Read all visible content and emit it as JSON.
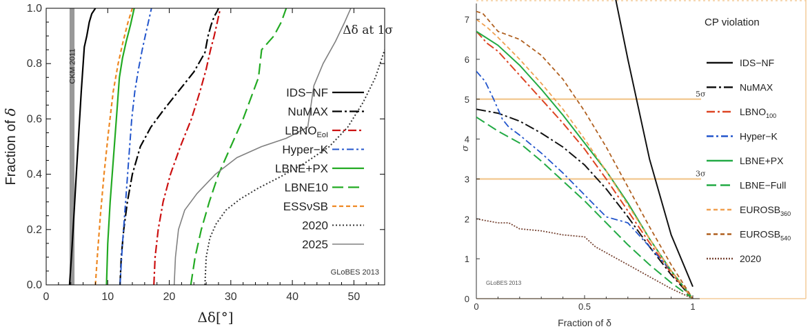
{
  "chart_data": [
    {
      "type": "line",
      "title": "Δδ at 1σ",
      "xlabel": "Δδ[°]",
      "ylabel": "Fraction of δ",
      "xlim": [
        0,
        55
      ],
      "ylim": [
        0,
        1
      ],
      "xticks": [
        "0",
        "10",
        "20",
        "30",
        "40",
        "50"
      ],
      "yticks": [
        "0.0",
        "0.2",
        "0.4",
        "0.6",
        "0.8",
        "1.0"
      ],
      "band": {
        "label": "CKM 2011",
        "x": [
          3.8,
          4.6
        ],
        "color": "#999999"
      },
      "watermark": "GLoBES 2013",
      "legend_position": "right",
      "series": [
        {
          "name": "IDS−NF",
          "legend_html": "IDS−NF",
          "color": "#000000",
          "dash": "",
          "width": 2.2,
          "x": [
            3.8,
            4.1,
            4.5,
            4.9,
            5.3,
            5.7,
            6.2,
            6.6,
            7.0,
            7.4,
            8.0
          ],
          "y": [
            0.0,
            0.1,
            0.25,
            0.4,
            0.55,
            0.7,
            0.86,
            0.9,
            0.95,
            0.98,
            1.0
          ]
        },
        {
          "name": "NuMAX",
          "legend_html": "NuMAX",
          "color": "#000000",
          "dash": "14,4,3,4",
          "width": 2.2,
          "x": [
            12.0,
            12.2,
            12.6,
            13.2,
            14.0,
            15.3,
            17.0,
            19.0,
            21.5,
            24.0,
            25.8,
            26.3,
            26.8,
            27.3,
            27.8,
            28.0
          ],
          "y": [
            0.0,
            0.1,
            0.2,
            0.3,
            0.4,
            0.5,
            0.57,
            0.63,
            0.7,
            0.77,
            0.84,
            0.9,
            0.94,
            0.97,
            0.99,
            1.0
          ]
        },
        {
          "name": "LBNO_EoI",
          "legend_main": "LBNO",
          "legend_sub": "EoI",
          "color": "#cc1111",
          "dash": "12,4,3,4",
          "width": 2.2,
          "x": [
            17.5,
            17.7,
            18.2,
            19.0,
            20.2,
            21.8,
            23.6,
            25.0,
            26.0,
            26.7,
            27.3,
            27.9,
            28.3
          ],
          "y": [
            0.0,
            0.1,
            0.2,
            0.3,
            0.4,
            0.5,
            0.6,
            0.7,
            0.78,
            0.85,
            0.9,
            0.96,
            1.0
          ]
        },
        {
          "name": "Hyper−K",
          "legend_html": "Hyper−K",
          "color": "#2255cc",
          "dash": "10,4,3,4",
          "width": 2.0,
          "x": [
            12.0,
            12.4,
            12.9,
            13.4,
            13.9,
            14.4,
            15.0,
            15.6,
            16.1,
            16.6,
            17.1
          ],
          "y": [
            0.0,
            0.15,
            0.3,
            0.45,
            0.6,
            0.7,
            0.78,
            0.85,
            0.9,
            0.95,
            1.0
          ]
        },
        {
          "name": "LBNE+PX",
          "legend_html": "LBNE+PX",
          "color": "#22aa22",
          "dash": "",
          "width": 2.2,
          "x": [
            9.8,
            10.0,
            10.4,
            10.9,
            11.4,
            11.9,
            12.4,
            13.0,
            13.7,
            14.3
          ],
          "y": [
            0.0,
            0.15,
            0.3,
            0.45,
            0.6,
            0.75,
            0.82,
            0.88,
            0.94,
            1.0
          ]
        },
        {
          "name": "LBNE10",
          "legend_html": "LBNE10",
          "color": "#22aa22",
          "dash": "16,7",
          "width": 2.2,
          "x": [
            23.5,
            24.2,
            25.2,
            26.5,
            28.0,
            30.0,
            32.0,
            34.5,
            35.0,
            37.0,
            38.2,
            39.0
          ],
          "y": [
            0.0,
            0.1,
            0.2,
            0.3,
            0.4,
            0.5,
            0.6,
            0.75,
            0.85,
            0.9,
            0.95,
            1.0
          ]
        },
        {
          "name": "ESSνSB",
          "legend_html": "ESSνSB",
          "color": "#ee8822",
          "dash": "6,4",
          "width": 2.2,
          "x": [
            8.0,
            8.3,
            8.8,
            9.4,
            10.1,
            10.9,
            11.7,
            12.5,
            13.3,
            14.0
          ],
          "y": [
            0.0,
            0.1,
            0.25,
            0.4,
            0.55,
            0.7,
            0.8,
            0.88,
            0.95,
            1.0
          ]
        },
        {
          "name": "2020",
          "legend_html": "2020",
          "color": "#333333",
          "dash": "2,3",
          "width": 2.0,
          "x": [
            25.8,
            26.0,
            26.6,
            27.6,
            29.2,
            31.5,
            34.5,
            38.0,
            42.0,
            46.0,
            49.0,
            51.5,
            53.5,
            55.0
          ],
          "y": [
            0.0,
            0.1,
            0.17,
            0.22,
            0.27,
            0.31,
            0.35,
            0.39,
            0.44,
            0.5,
            0.57,
            0.66,
            0.75,
            0.85
          ]
        },
        {
          "name": "2025",
          "legend_html": "2025",
          "color": "#808080",
          "dash": "",
          "width": 1.6,
          "x": [
            20.8,
            21.0,
            21.5,
            22.5,
            24.5,
            27.5,
            31.0,
            35.0,
            39.0,
            42.5,
            43.5,
            45.0,
            47.0,
            48.5,
            49.5
          ],
          "y": [
            0.0,
            0.1,
            0.2,
            0.27,
            0.33,
            0.4,
            0.46,
            0.5,
            0.53,
            0.57,
            0.72,
            0.8,
            0.88,
            0.95,
            1.0
          ]
        }
      ]
    },
    {
      "type": "line",
      "title": "CP violation",
      "xlabel": "Fraction of δ",
      "ylabel": "σ",
      "xlim": [
        0,
        1
      ],
      "ylim": [
        0,
        7.4
      ],
      "xticks": [
        "0",
        "0.5",
        "1"
      ],
      "yticks": [
        "0",
        "1",
        "2",
        "3",
        "4",
        "5",
        "6",
        "7"
      ],
      "reference_lines": [
        {
          "y": 5,
          "label": "5σ"
        },
        {
          "y": 3,
          "label": "3σ"
        }
      ],
      "reference_color": "#f3cc99",
      "watermark": "GLoBES 2013",
      "legend_position": "right",
      "series": [
        {
          "name": "IDS−NF",
          "legend_html": "IDS−NF",
          "color": "#111111",
          "dash": "",
          "width": 2.0,
          "x": [
            0.64,
            0.7,
            0.8,
            0.9,
            1.0
          ],
          "y": [
            7.6,
            6.0,
            3.5,
            1.6,
            0.3
          ]
        },
        {
          "name": "NuMAX",
          "legend_html": "NuMAX",
          "color": "#111111",
          "dash": "14,4,3,4",
          "width": 2.0,
          "x": [
            0.0,
            0.1,
            0.2,
            0.3,
            0.4,
            0.5,
            0.6,
            0.7,
            0.8,
            0.9,
            1.0
          ],
          "y": [
            4.75,
            4.65,
            4.45,
            4.15,
            3.8,
            3.35,
            2.75,
            2.05,
            1.3,
            0.6,
            0.0
          ]
        },
        {
          "name": "LBNO100",
          "legend_main": "LBNO",
          "legend_sub": "100",
          "color": "#dd4422",
          "dash": "12,4,3,4",
          "width": 2.0,
          "x": [
            0.0,
            0.05,
            0.1,
            0.2,
            0.3,
            0.4,
            0.5,
            0.6,
            0.7,
            0.8,
            0.9,
            1.0
          ],
          "y": [
            6.7,
            6.4,
            6.2,
            5.6,
            5.0,
            4.4,
            3.75,
            3.0,
            2.2,
            1.4,
            0.65,
            0.0
          ]
        },
        {
          "name": "Hyper−K",
          "legend_html": "Hyper−K",
          "color": "#2255cc",
          "dash": "10,4,3,4",
          "width": 1.8,
          "x": [
            0.0,
            0.04,
            0.08,
            0.12,
            0.15,
            0.2,
            0.3,
            0.4,
            0.5,
            0.6,
            0.7,
            0.8,
            0.9,
            1.0
          ],
          "y": [
            5.7,
            5.45,
            5.0,
            4.5,
            4.3,
            4.1,
            3.65,
            3.15,
            2.6,
            2.05,
            1.9,
            1.3,
            0.7,
            0.0
          ]
        },
        {
          "name": "LBNE+PX",
          "legend_html": "LBNE+PX",
          "color": "#22aa44",
          "dash": "",
          "width": 2.0,
          "x": [
            0.0,
            0.1,
            0.2,
            0.3,
            0.4,
            0.5,
            0.6,
            0.7,
            0.8,
            0.9,
            1.0
          ],
          "y": [
            6.7,
            6.35,
            5.85,
            5.25,
            4.6,
            3.9,
            3.2,
            2.4,
            1.5,
            0.7,
            0.0
          ]
        },
        {
          "name": "LBNE−Full",
          "legend_html": "LBNE−Full",
          "color": "#22aa44",
          "dash": "14,6",
          "width": 2.0,
          "x": [
            0.0,
            0.1,
            0.2,
            0.3,
            0.4,
            0.5,
            0.6,
            0.7,
            0.8,
            0.9,
            1.0
          ],
          "y": [
            4.55,
            4.2,
            3.9,
            3.45,
            2.95,
            2.45,
            1.9,
            1.35,
            0.85,
            0.4,
            0.0
          ]
        },
        {
          "name": "EUROSB360",
          "legend_main": "EUROSB",
          "legend_sub": "360",
          "color": "#f0a050",
          "dash": "6,4",
          "width": 1.8,
          "x": [
            0.0,
            0.05,
            0.1,
            0.2,
            0.3,
            0.4,
            0.5,
            0.6,
            0.7,
            0.8,
            0.9,
            1.0
          ],
          "y": [
            7.0,
            6.8,
            6.55,
            6.0,
            5.4,
            4.75,
            4.0,
            3.2,
            2.35,
            1.5,
            0.7,
            0.0
          ]
        },
        {
          "name": "EUROSB540",
          "legend_main": "EUROSB",
          "legend_sub": "540",
          "color": "#b06020",
          "dash": "6,4",
          "width": 1.8,
          "x": [
            0.0,
            0.03,
            0.1,
            0.2,
            0.3,
            0.4,
            0.5,
            0.6,
            0.7,
            0.8,
            0.9,
            1.0
          ],
          "y": [
            7.2,
            7.15,
            6.7,
            6.5,
            6.1,
            5.5,
            4.7,
            3.8,
            2.8,
            1.8,
            0.85,
            0.0
          ]
        },
        {
          "name": "2020",
          "legend_html": "2020",
          "color": "#774433",
          "dash": "2,2",
          "width": 1.8,
          "x": [
            0.0,
            0.1,
            0.15,
            0.2,
            0.3,
            0.4,
            0.5,
            0.55,
            0.6,
            0.7,
            0.8,
            0.9,
            1.0
          ],
          "y": [
            2.0,
            1.9,
            1.9,
            1.75,
            1.7,
            1.6,
            1.55,
            1.3,
            1.15,
            0.85,
            0.55,
            0.25,
            0.0
          ]
        }
      ]
    }
  ]
}
